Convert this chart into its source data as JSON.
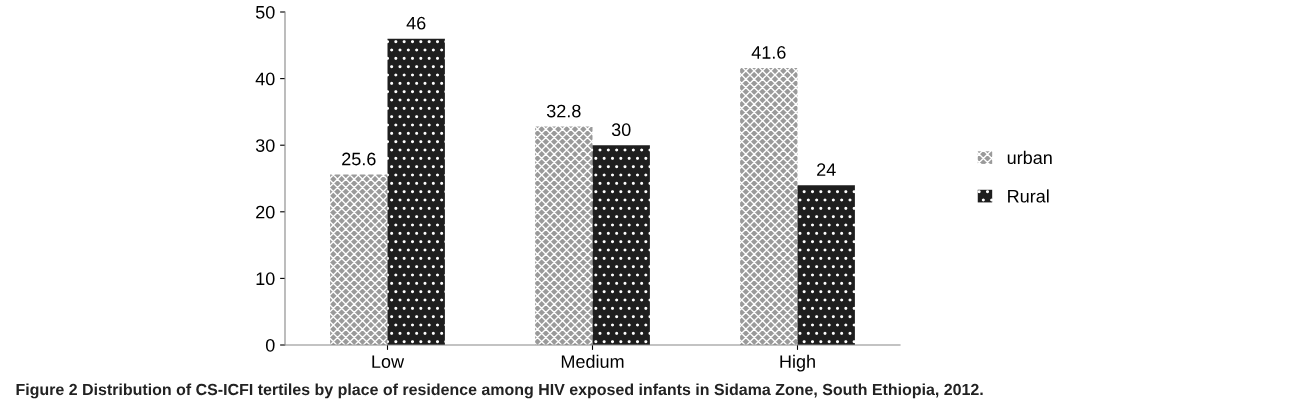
{
  "chart_data": {
    "type": "bar",
    "categories": [
      "Low",
      "Medium",
      "High"
    ],
    "series": [
      {
        "name": "urban",
        "color": "#9a9a9a",
        "values": [
          25.6,
          32.8,
          41.6
        ]
      },
      {
        "name": "Rural",
        "color": "#1e1e1e",
        "values": [
          46,
          30,
          24
        ]
      }
    ],
    "ylim": [
      0,
      50
    ],
    "yticks": [
      0,
      10,
      20,
      30,
      40,
      50
    ],
    "grid": false,
    "legend": "right",
    "data_labels": true,
    "annotations": [
      "Figure 2 Distribution of CS-ICFI tertiles by place of residence among HIV exposed infants in Sidama Zone, South Ethiopia, 2012."
    ]
  }
}
